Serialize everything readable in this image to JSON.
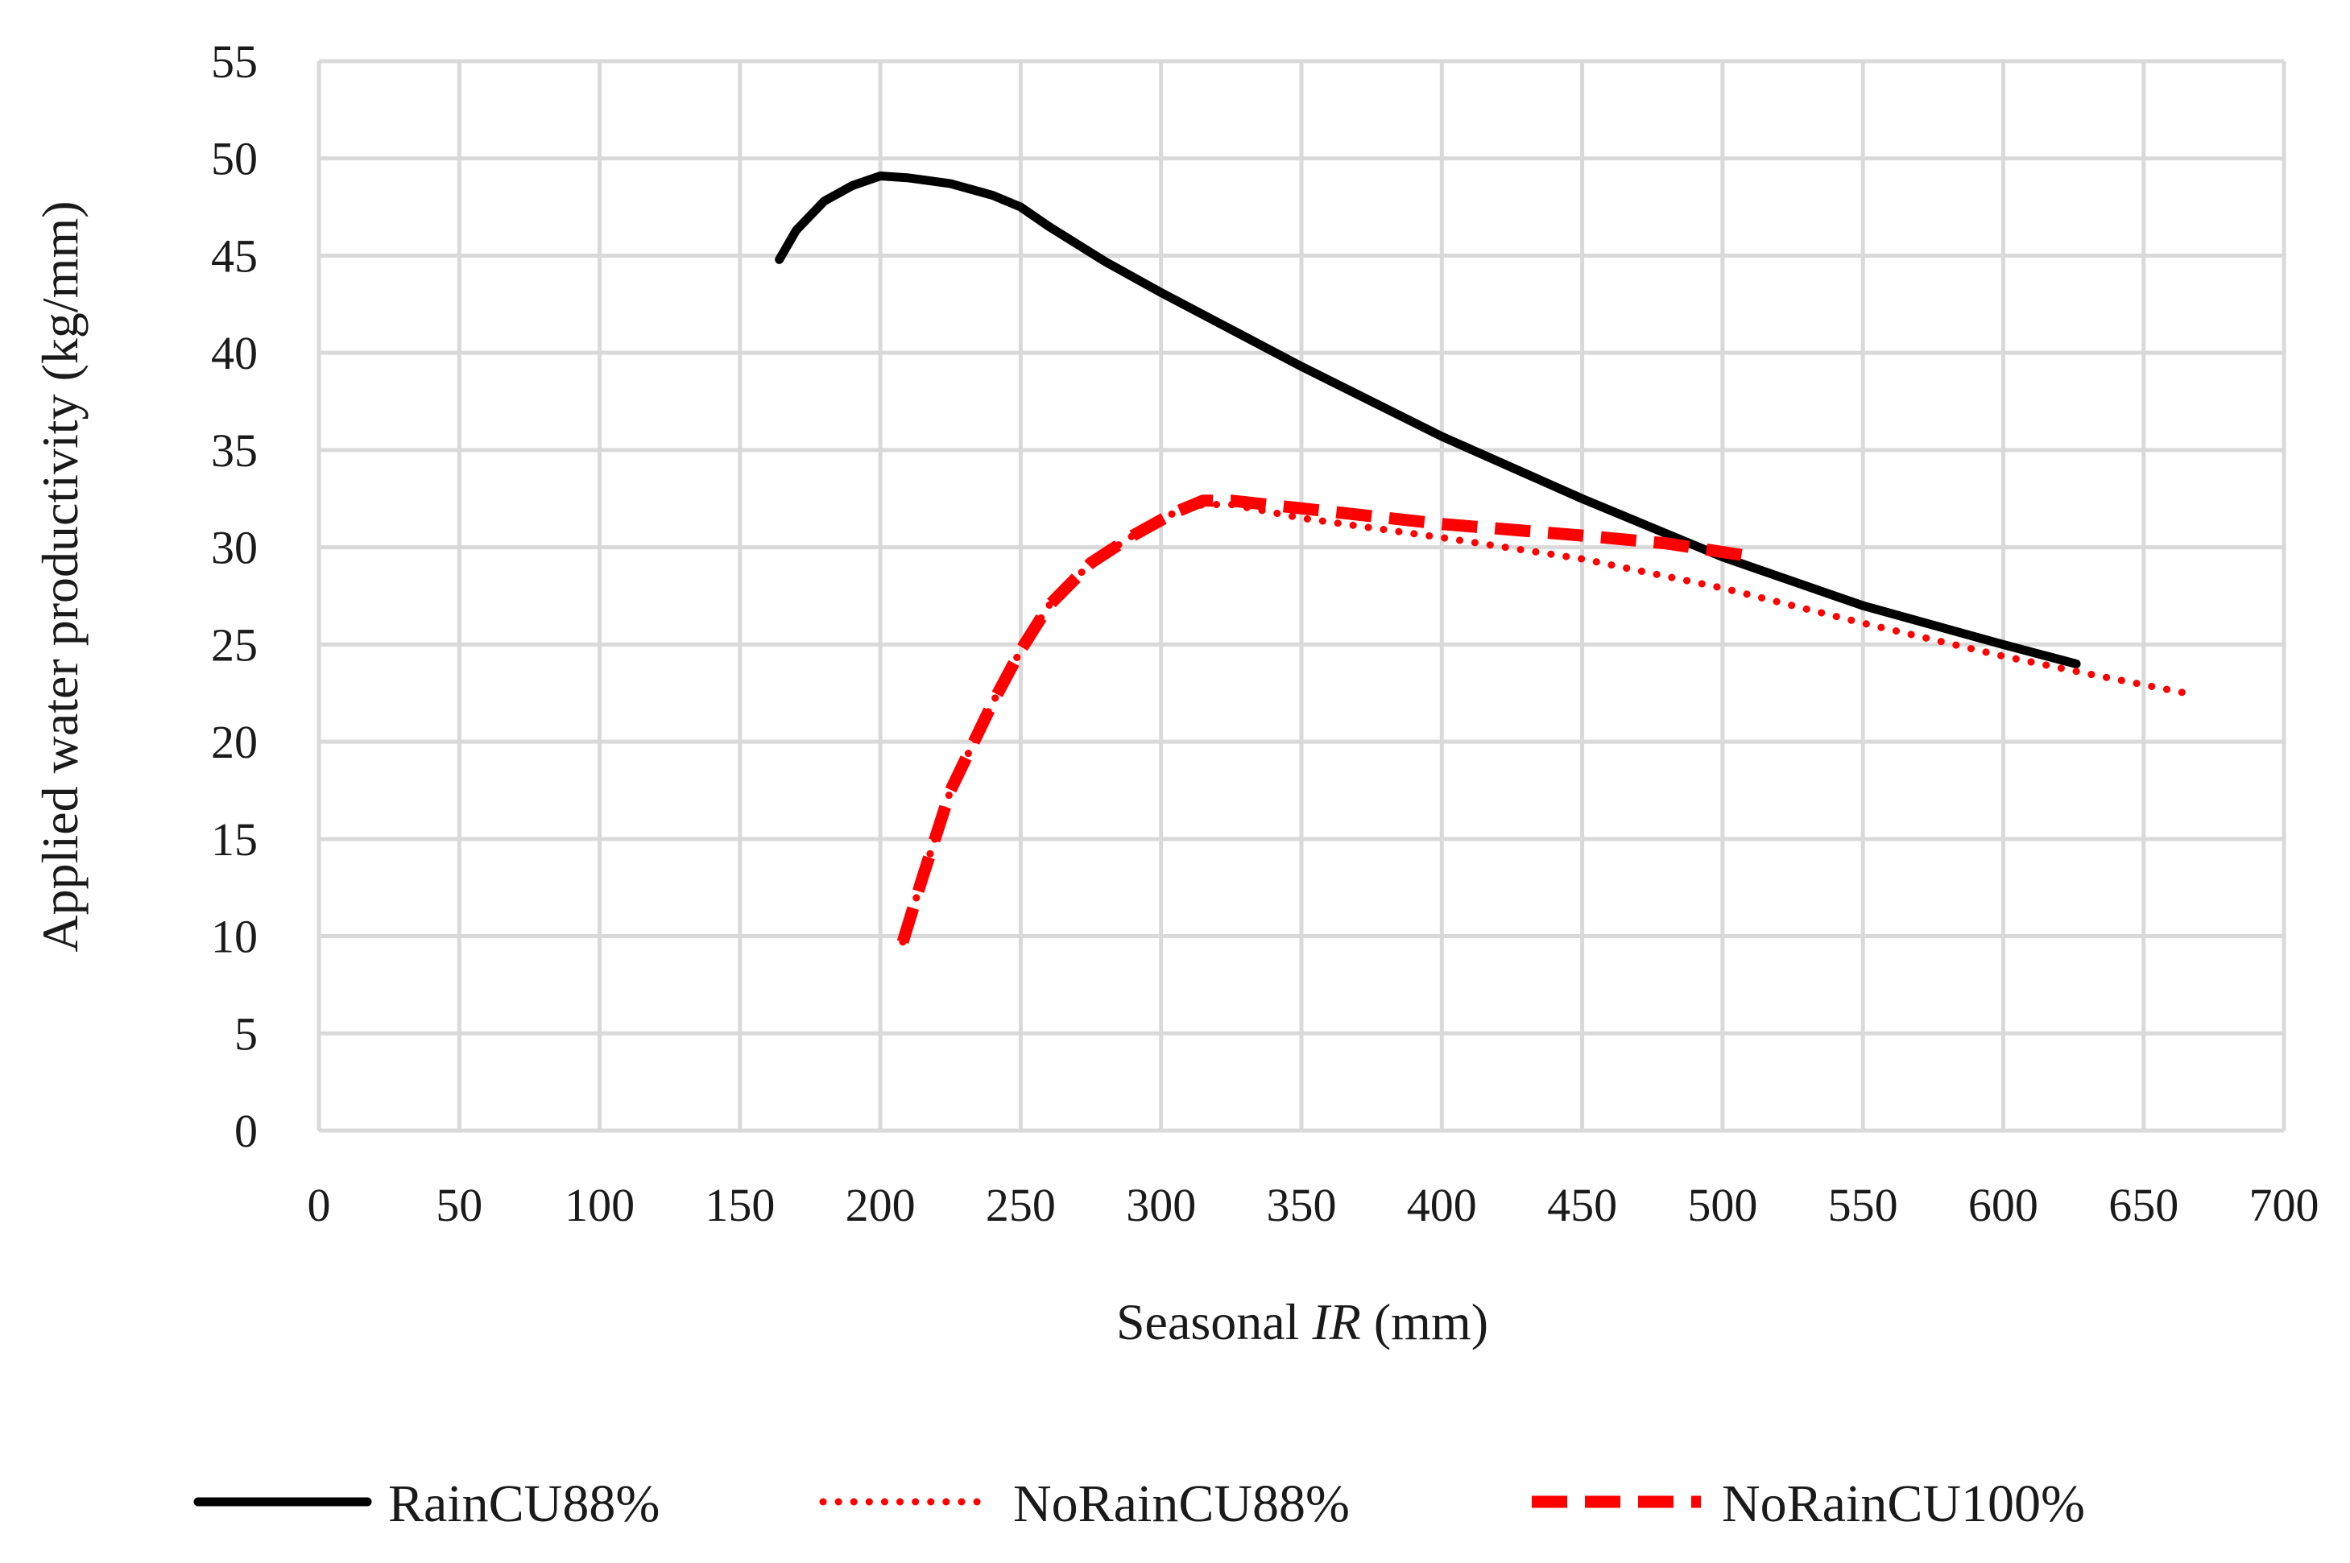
{
  "chart_data": {
    "type": "line",
    "xlabel": {
      "prefix": "Seasonal ",
      "italic": "IR",
      "suffix": " (mm)"
    },
    "ylabel": "Applied water productivity  (kg/mm)",
    "xlim": [
      0,
      700
    ],
    "ylim": [
      0,
      55
    ],
    "x_ticks": [
      0,
      50,
      100,
      150,
      200,
      250,
      300,
      350,
      400,
      450,
      500,
      550,
      600,
      650,
      700
    ],
    "y_ticks": [
      0,
      5,
      10,
      15,
      20,
      25,
      30,
      35,
      40,
      45,
      50,
      55
    ],
    "grid": true,
    "legend_position": "bottom",
    "series": [
      {
        "name": "RainCU88%",
        "color": "#000000",
        "style": "solid",
        "points": [
          [
            164,
            44.8
          ],
          [
            170,
            46.3
          ],
          [
            180,
            47.8
          ],
          [
            190,
            48.6
          ],
          [
            200,
            49.1
          ],
          [
            210,
            49.0
          ],
          [
            225,
            48.7
          ],
          [
            240,
            48.1
          ],
          [
            250,
            47.5
          ],
          [
            260,
            46.5
          ],
          [
            280,
            44.7
          ],
          [
            300,
            43.1
          ],
          [
            350,
            39.3
          ],
          [
            400,
            35.7
          ],
          [
            450,
            32.5
          ],
          [
            500,
            29.5
          ],
          [
            550,
            27.0
          ],
          [
            600,
            25.0
          ],
          [
            626,
            24.0
          ]
        ]
      },
      {
        "name": "NoRainCU88%",
        "color": "#ff0000",
        "style": "dotted",
        "points": [
          [
            208,
            9.7
          ],
          [
            215,
            13.0
          ],
          [
            225,
            17.5
          ],
          [
            240,
            22.0
          ],
          [
            250,
            24.7
          ],
          [
            260,
            27.0
          ],
          [
            275,
            29.2
          ],
          [
            290,
            30.6
          ],
          [
            305,
            31.8
          ],
          [
            315,
            32.2
          ],
          [
            325,
            32.2
          ],
          [
            350,
            31.5
          ],
          [
            400,
            30.5
          ],
          [
            450,
            29.4
          ],
          [
            500,
            27.9
          ],
          [
            550,
            26.1
          ],
          [
            600,
            24.4
          ],
          [
            630,
            23.5
          ],
          [
            665,
            22.5
          ]
        ]
      },
      {
        "name": "NoRainCU100%",
        "color": "#ff0000",
        "style": "dashed",
        "points": [
          [
            208,
            9.7
          ],
          [
            215,
            13.0
          ],
          [
            225,
            17.5
          ],
          [
            240,
            22.0
          ],
          [
            250,
            24.7
          ],
          [
            260,
            27.0
          ],
          [
            275,
            29.2
          ],
          [
            290,
            30.6
          ],
          [
            305,
            31.8
          ],
          [
            315,
            32.4
          ],
          [
            325,
            32.4
          ],
          [
            350,
            32.0
          ],
          [
            400,
            31.2
          ],
          [
            450,
            30.6
          ],
          [
            480,
            30.2
          ],
          [
            507,
            29.6
          ]
        ]
      }
    ]
  }
}
